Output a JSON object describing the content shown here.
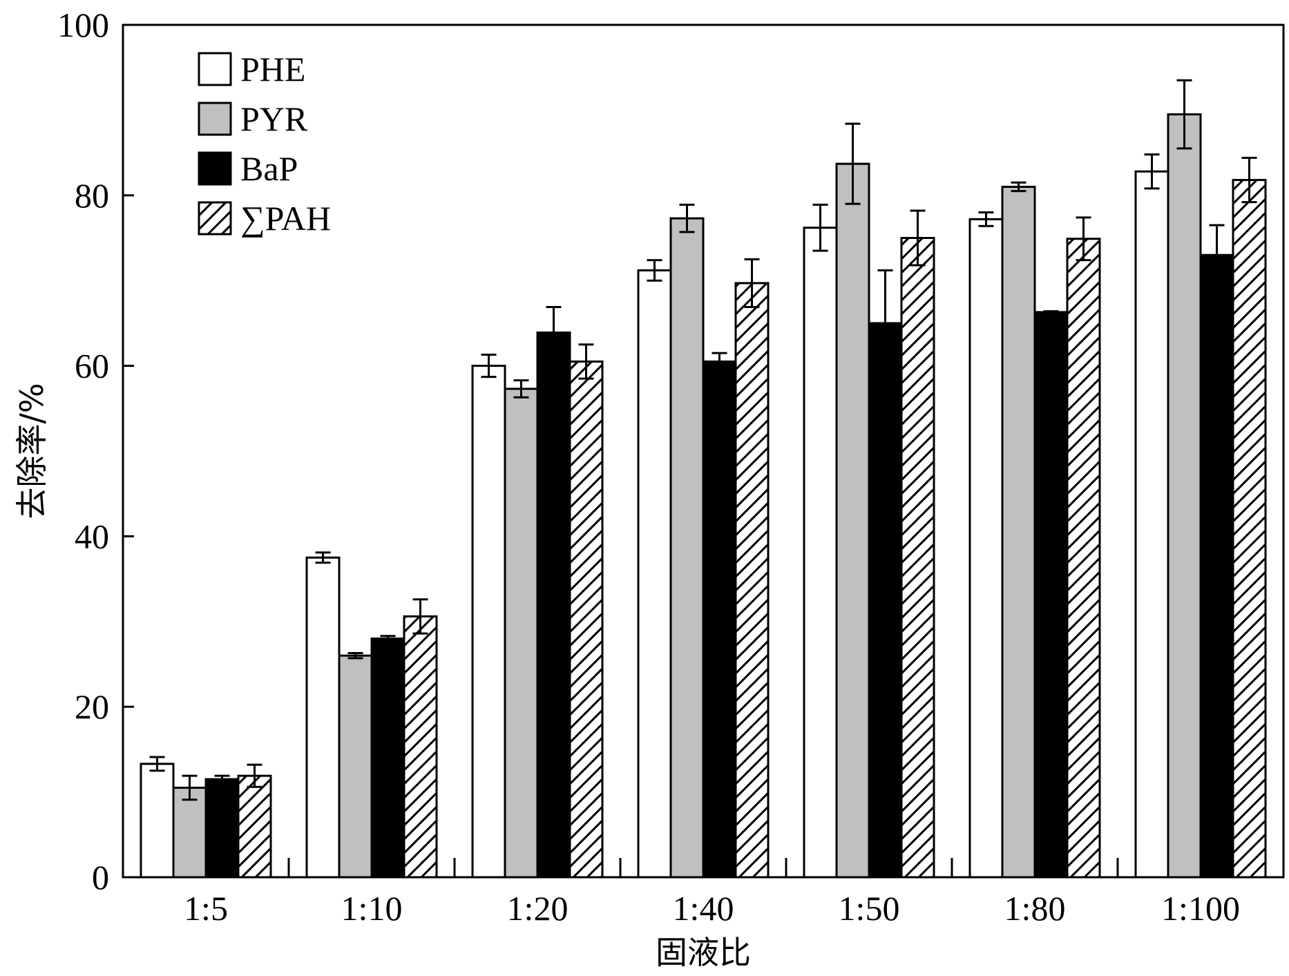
{
  "chart_data": {
    "type": "bar",
    "xlabel": "固液比",
    "ylabel": "去除率/%",
    "ylim": [
      0,
      100
    ],
    "yticks": [
      0,
      20,
      40,
      60,
      80,
      100
    ],
    "grid": false,
    "legend_position": "top-left",
    "categories": [
      "1:5",
      "1:10",
      "1:20",
      "1:40",
      "1:50",
      "1:80",
      "1:100"
    ],
    "series": [
      {
        "name": "PHE",
        "fill": "white",
        "values": [
          13.3,
          37.5,
          60.0,
          71.2,
          76.2,
          77.2,
          82.8
        ],
        "errors": [
          0.8,
          0.6,
          1.3,
          1.2,
          2.7,
          0.8,
          2.0
        ]
      },
      {
        "name": "PYR",
        "fill": "gray",
        "values": [
          10.5,
          26.0,
          57.3,
          77.3,
          83.7,
          81.0,
          89.5
        ],
        "errors": [
          1.4,
          0.3,
          1.0,
          1.6,
          4.7,
          0.5,
          4.0
        ]
      },
      {
        "name": "BaP",
        "fill": "black",
        "values": [
          11.5,
          28.0,
          63.9,
          60.5,
          65.0,
          66.3,
          73.0
        ],
        "errors": [
          0.4,
          0.3,
          3.0,
          1.0,
          6.2,
          0.1,
          3.5
        ]
      },
      {
        "name": "∑PAH",
        "fill": "hatched",
        "values": [
          11.9,
          30.6,
          60.5,
          69.7,
          75.0,
          74.9,
          81.8
        ],
        "errors": [
          1.3,
          2.0,
          2.0,
          2.8,
          3.2,
          2.5,
          2.6
        ]
      }
    ],
    "colors": {
      "white": "#ffffff",
      "gray": "#c0c0c0",
      "black": "#000000",
      "stroke": "#000000"
    }
  }
}
